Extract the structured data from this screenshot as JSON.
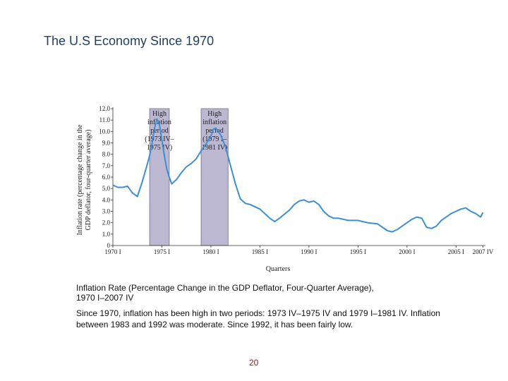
{
  "slide": {
    "title": "The U.S Economy Since 1970",
    "caption_line1": "Inflation Rate (Percentage Change in the GDP Deflator, Four-Quarter Average),",
    "caption_line2": "1970 I–2007 IV",
    "body_line1": "Since 1970, inflation has been high in two periods: 1973 IV–1975 IV and 1979 I–1981 IV. Inflation",
    "body_line2": "between 1983 and 1992 was moderate. Since 1992, it has been fairly low.",
    "page_number": "20"
  },
  "chart_data": {
    "type": "line",
    "xlabel": "Quarters",
    "ylabel_line1": "Inflation rate (percentage change in the",
    "ylabel_line2": "GDP deflator, four-quarter average)",
    "ylim": [
      0,
      12
    ],
    "yticks": [
      "0",
      "1.0",
      "2.0",
      "3.0",
      "4.0",
      "5.0",
      "6.0",
      "7.0",
      "8.0",
      "9.0",
      "10.0",
      "11.0",
      "12.0"
    ],
    "xlim": [
      1970,
      2008
    ],
    "xticks": [
      {
        "x": 1970,
        "label": "1970 I"
      },
      {
        "x": 1975,
        "label": "1975 I"
      },
      {
        "x": 1980,
        "label": "1980 I"
      },
      {
        "x": 1985,
        "label": "1985 I"
      },
      {
        "x": 1990,
        "label": "1990 I"
      },
      {
        "x": 1995,
        "label": "1995 I"
      },
      {
        "x": 2000,
        "label": "2000 I"
      },
      {
        "x": 2005,
        "label": "2005 I"
      },
      {
        "x": 2007.75,
        "label": "2007 IV"
      }
    ],
    "shaded_periods": [
      {
        "start": 1973.75,
        "end": 1975.75,
        "label_lines": [
          "High",
          "inflation",
          "period",
          "(1973 IV–",
          "1975 IV)"
        ]
      },
      {
        "start": 1979.0,
        "end": 1981.75,
        "label_lines": [
          "High",
          "inflation",
          "period",
          "(1979 I–",
          "1981 IV)"
        ]
      }
    ],
    "series": [
      {
        "color": "#3d8fd4",
        "x": [
          1970.0,
          1970.5,
          1971.0,
          1971.5,
          1972.0,
          1972.5,
          1973.0,
          1973.5,
          1973.75,
          1974.0,
          1974.25,
          1974.5,
          1974.75,
          1975.0,
          1975.25,
          1975.5,
          1975.75,
          1976.0,
          1976.5,
          1977.0,
          1977.5,
          1978.0,
          1978.5,
          1979.0,
          1979.5,
          1980.0,
          1980.25,
          1980.5,
          1981.0,
          1981.5,
          1982.0,
          1982.5,
          1983.0,
          1983.5,
          1984.0,
          1985.0,
          1986.0,
          1986.5,
          1987.0,
          1988.0,
          1988.5,
          1989.0,
          1989.5,
          1990.0,
          1990.5,
          1991.0,
          1991.5,
          1992.0,
          1992.5,
          1993.0,
          1994.0,
          1995.0,
          1995.5,
          1996.0,
          1997.0,
          1998.0,
          1998.5,
          1999.0,
          2000.0,
          2000.5,
          2001.0,
          2001.5,
          2002.0,
          2002.5,
          2003.0,
          2003.5,
          2004.0,
          2004.5,
          2005.0,
          2005.5,
          2006.0,
          2006.5,
          2007.0,
          2007.5,
          2007.75
        ],
        "y": [
          5.3,
          5.1,
          5.1,
          5.2,
          4.6,
          4.3,
          5.6,
          7.1,
          7.9,
          9.0,
          10.3,
          11.1,
          10.6,
          9.2,
          7.9,
          6.7,
          6.0,
          5.4,
          5.8,
          6.4,
          6.9,
          7.2,
          7.6,
          8.3,
          8.9,
          9.6,
          10.2,
          10.3,
          9.7,
          8.6,
          7.0,
          5.4,
          4.1,
          3.7,
          3.6,
          3.2,
          2.4,
          2.1,
          2.4,
          3.1,
          3.6,
          3.9,
          4.0,
          3.8,
          3.9,
          3.6,
          3.0,
          2.6,
          2.4,
          2.4,
          2.2,
          2.2,
          2.1,
          2.0,
          1.9,
          1.3,
          1.2,
          1.4,
          2.0,
          2.3,
          2.5,
          2.4,
          1.6,
          1.5,
          1.7,
          2.2,
          2.5,
          2.8,
          3.0,
          3.2,
          3.3,
          3.0,
          2.8,
          2.5,
          2.9
        ]
      }
    ]
  }
}
